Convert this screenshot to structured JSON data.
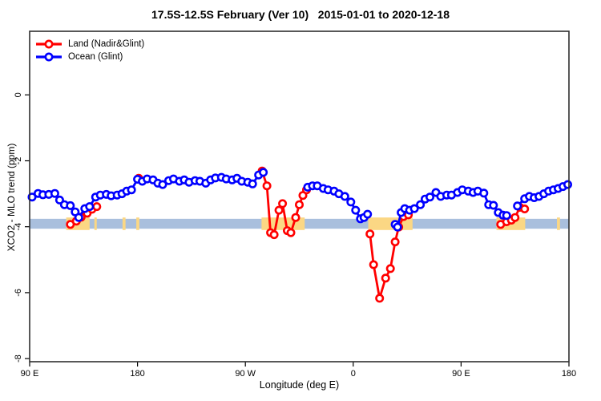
{
  "chart_data": {
    "type": "line",
    "title": "17.5S-12.5S February (Ver 10)   2015-01-01 to 2020-12-18",
    "xlabel": "Longitude (deg E)",
    "ylabel": "XCO2 - MLO trend (ppm)",
    "grid": false,
    "legend_position": "top-left-inside",
    "x_axis": {
      "note": "longitude unrolled eastward, 90E to 180 wrapping once around the globe",
      "range_deg": [
        90,
        540
      ],
      "ticks_deg": [
        90,
        180,
        270,
        360,
        450,
        540
      ],
      "tick_labels": [
        "90 E",
        "180",
        "90 W",
        "0",
        "90 E",
        "180"
      ]
    },
    "y_axis": {
      "range": [
        -8.1,
        1.95
      ],
      "ticks": [
        0,
        -2,
        -4,
        -6,
        -8
      ],
      "tick_labels": [
        "0",
        "-2",
        "-4",
        "-6",
        "-8"
      ]
    },
    "legend": [
      {
        "label": "Land (Nadir&Glint)",
        "color": "#ff0000"
      },
      {
        "label": "Ocean (Glint)",
        "color": "#0000ff"
      }
    ],
    "reference_band": {
      "y_from": -3.76,
      "y_to": -4.06,
      "color": "#a9bfdd"
    },
    "highlight_spans": {
      "color": "#fbd784",
      "y_from": -3.72,
      "y_to": -4.1,
      "ranges_deg": [
        [
          120.5,
          140
        ],
        [
          144,
          146
        ],
        [
          167.5,
          170
        ],
        [
          179,
          181.5
        ],
        [
          283.5,
          319.5
        ],
        [
          372.5,
          409.5
        ],
        [
          479.5,
          503.5
        ],
        [
          530,
          532.5
        ]
      ]
    },
    "series": [
      {
        "name": "Land (Nadir&Glint)",
        "color": "#ff0000",
        "segments": [
          [
            [
              124,
              -3.93
            ],
            [
              129,
              -3.83
            ],
            [
              133,
              -3.71
            ],
            [
              138,
              -3.59
            ],
            [
              142,
              -3.47
            ],
            [
              146,
              -3.39
            ]
          ],
          [
            [
              181,
              -2.53
            ]
          ],
          [
            [
              284,
              -2.31
            ],
            [
              288,
              -2.76
            ],
            [
              291,
              -4.18
            ],
            [
              294,
              -4.24
            ],
            [
              298,
              -3.5
            ],
            [
              301,
              -3.3
            ],
            [
              305,
              -4.12
            ],
            [
              308,
              -4.18
            ],
            [
              312,
              -3.72
            ],
            [
              315,
              -3.33
            ],
            [
              318,
              -3.05
            ],
            [
              321,
              -2.88
            ]
          ],
          [
            [
              374,
              -4.22
            ],
            [
              377,
              -5.15
            ],
            [
              382,
              -6.17
            ],
            [
              387,
              -5.56
            ],
            [
              391,
              -5.27
            ],
            [
              395,
              -4.46
            ],
            [
              398,
              -4.01
            ],
            [
              402,
              -3.69
            ],
            [
              406,
              -3.64
            ]
          ],
          [
            [
              483,
              -3.93
            ],
            [
              488,
              -3.85
            ],
            [
              492,
              -3.8
            ],
            [
              495,
              -3.72
            ],
            [
              499,
              -3.41
            ],
            [
              503,
              -3.46
            ]
          ]
        ]
      },
      {
        "name": "Ocean (Glint)",
        "color": "#0000ff",
        "segments": [
          [
            [
              92,
              -3.1
            ],
            [
              97,
              -2.99
            ],
            [
              101,
              -3.03
            ],
            [
              106,
              -3.02
            ],
            [
              111,
              -2.99
            ],
            [
              115,
              -3.19
            ],
            [
              119,
              -3.33
            ],
            [
              124,
              -3.36
            ],
            [
              128,
              -3.55
            ],
            [
              131,
              -3.72
            ],
            [
              136,
              -3.45
            ],
            [
              140,
              -3.39
            ],
            [
              145,
              -3.1
            ],
            [
              149,
              -3.04
            ],
            [
              154,
              -3.02
            ],
            [
              158,
              -3.06
            ],
            [
              163,
              -3.04
            ],
            [
              167,
              -3.0
            ],
            [
              171,
              -2.92
            ],
            [
              175,
              -2.88
            ],
            [
              180,
              -2.56
            ],
            [
              184,
              -2.62
            ],
            [
              188,
              -2.55
            ],
            [
              193,
              -2.58
            ],
            [
              197,
              -2.68
            ],
            [
              201,
              -2.72
            ],
            [
              206,
              -2.6
            ],
            [
              210,
              -2.55
            ],
            [
              215,
              -2.62
            ],
            [
              219,
              -2.58
            ],
            [
              223,
              -2.65
            ],
            [
              228,
              -2.6
            ],
            [
              232,
              -2.62
            ],
            [
              237,
              -2.68
            ],
            [
              241,
              -2.58
            ],
            [
              245,
              -2.52
            ],
            [
              250,
              -2.5
            ],
            [
              254,
              -2.55
            ],
            [
              259,
              -2.58
            ],
            [
              263,
              -2.53
            ],
            [
              267,
              -2.62
            ],
            [
              272,
              -2.65
            ],
            [
              276,
              -2.7
            ],
            [
              281,
              -2.43
            ],
            [
              285,
              -2.35
            ]
          ],
          [
            [
              322,
              -2.8
            ],
            [
              326,
              -2.76
            ],
            [
              330,
              -2.76
            ],
            [
              335,
              -2.84
            ],
            [
              339,
              -2.88
            ],
            [
              344,
              -2.92
            ],
            [
              348,
              -3.0
            ],
            [
              353,
              -3.08
            ],
            [
              358,
              -3.25
            ],
            [
              362,
              -3.5
            ],
            [
              366,
              -3.76
            ],
            [
              369,
              -3.72
            ],
            [
              372,
              -3.62
            ]
          ],
          [
            [
              395,
              -3.93
            ],
            [
              397,
              -4.01
            ],
            [
              400,
              -3.57
            ],
            [
              403,
              -3.45
            ],
            [
              407,
              -3.5
            ],
            [
              411,
              -3.45
            ],
            [
              416,
              -3.33
            ],
            [
              420,
              -3.16
            ],
            [
              424,
              -3.1
            ],
            [
              429,
              -2.96
            ],
            [
              433,
              -3.08
            ],
            [
              438,
              -3.04
            ],
            [
              442,
              -3.04
            ],
            [
              447,
              -2.96
            ],
            [
              451,
              -2.88
            ],
            [
              456,
              -2.92
            ],
            [
              460,
              -2.96
            ],
            [
              464,
              -2.92
            ],
            [
              469,
              -2.98
            ],
            [
              473,
              -3.33
            ],
            [
              477,
              -3.35
            ],
            [
              481,
              -3.57
            ],
            [
              485,
              -3.65
            ],
            [
              488,
              -3.66
            ]
          ],
          [
            [
              497,
              -3.37
            ],
            [
              503,
              -3.15
            ],
            [
              507,
              -3.08
            ],
            [
              511,
              -3.12
            ],
            [
              515,
              -3.08
            ],
            [
              519,
              -3.0
            ],
            [
              523,
              -2.92
            ],
            [
              527,
              -2.88
            ],
            [
              531,
              -2.84
            ],
            [
              535,
              -2.78
            ],
            [
              539,
              -2.72
            ]
          ]
        ]
      }
    ]
  }
}
